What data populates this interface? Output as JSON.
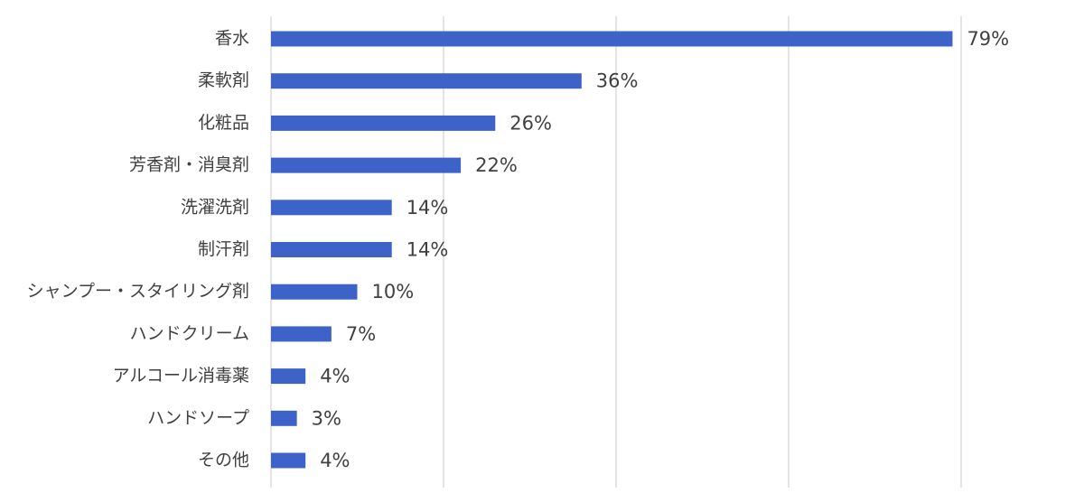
{
  "chart_data": {
    "type": "hbar",
    "categories": [
      "香水",
      "柔軟剤",
      "化粧品",
      "芳香剤・消臭剤",
      "洗濯洗剤",
      "制汗剤",
      "シャンプー・スタイリング剤",
      "ハンドクリーム",
      "アルコール消毒薬",
      "ハンドソープ",
      "その他"
    ],
    "values": [
      79,
      36,
      26,
      22,
      14,
      14,
      10,
      7,
      4,
      3,
      4
    ],
    "value_labels": [
      "79%",
      "36%",
      "26%",
      "22%",
      "14%",
      "14%",
      "10%",
      "7%",
      "4%",
      "3%",
      "4%"
    ],
    "color": "#3d63c9",
    "xlim": [
      0,
      80
    ],
    "xticks": [
      0,
      20,
      40,
      60,
      80
    ],
    "grid": true
  }
}
